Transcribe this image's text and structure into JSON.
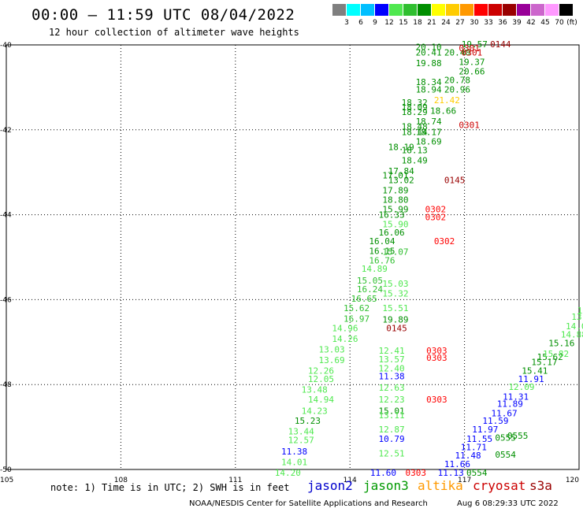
{
  "title": "00:00 – 11:59 UTC 08/04/2022",
  "subtitle": "12 hour collection of altimeter wave heights",
  "colorbar": {
    "unit": "(ft)",
    "bins": [
      {
        "label": "3",
        "color": "#7f7f7f"
      },
      {
        "label": "6",
        "color": "#00ffff"
      },
      {
        "label": "9",
        "color": "#00bfff"
      },
      {
        "label": "12",
        "color": "#0000ff"
      },
      {
        "label": "15",
        "color": "#4fe84f"
      },
      {
        "label": "18",
        "color": "#2fbf2f"
      },
      {
        "label": "21",
        "color": "#008f00"
      },
      {
        "label": "24",
        "color": "#ffff00"
      },
      {
        "label": "27",
        "color": "#ffcc00"
      },
      {
        "label": "30",
        "color": "#ff9900"
      },
      {
        "label": "33",
        "color": "#ff0000"
      },
      {
        "label": "36",
        "color": "#cc0000"
      },
      {
        "label": "39",
        "color": "#990000"
      },
      {
        "label": "42",
        "color": "#990099"
      },
      {
        "label": "45",
        "color": "#cc66cc"
      },
      {
        "label": "70",
        "color": "#ff99ff"
      },
      {
        "label": "",
        "color": "#000000"
      }
    ]
  },
  "axes": {
    "lon_labels": [
      "105",
      "108",
      "111",
      "114",
      "117",
      "120"
    ],
    "lat_labels": [
      "-40",
      "-42",
      "-44",
      "-46",
      "-48",
      "-50"
    ]
  },
  "map_extent": {
    "lon": [
      105,
      120
    ],
    "lat": [
      -40,
      -50
    ]
  },
  "note": "note: 1) Time is in UTC; 2) SWH is in feet",
  "satellites": [
    {
      "name": "jason2",
      "color": "#0000cc"
    },
    {
      "name": "jason3",
      "color": "#009900"
    },
    {
      "name": "altika",
      "color": "#ff9900"
    },
    {
      "name": "cryosat",
      "color": "#cc0000"
    },
    {
      "name": "s3a",
      "color": "#990000"
    }
  ],
  "footer": "NOAA/NESDIS Center for Satellite Applications and Research",
  "footer_time": "Aug  6 08:29:33 UTC 2022",
  "observations": [
    {
      "t": "19.57",
      "lon": 116.92,
      "lat": -39.98,
      "c": "#008f00"
    },
    {
      "t": "0144",
      "lon": 117.67,
      "lat": -39.98,
      "c": "#990000"
    },
    {
      "t": "20.10",
      "lon": 115.72,
      "lat": -40.05,
      "c": "#008f00"
    },
    {
      "t": "0301",
      "lon": 116.85,
      "lat": -40.07,
      "c": "#cc0000"
    },
    {
      "t": "20.41",
      "lon": 115.72,
      "lat": -40.18,
      "c": "#008f00"
    },
    {
      "t": "20.40",
      "lon": 116.47,
      "lat": -40.18,
      "c": "#008f00"
    },
    {
      "t": "0301",
      "lon": 116.92,
      "lat": -40.18,
      "c": "#cc0000"
    },
    {
      "t": "19.88",
      "lon": 115.72,
      "lat": -40.43,
      "c": "#008f00"
    },
    {
      "t": "19.37",
      "lon": 116.85,
      "lat": -40.4,
      "c": "#008f00"
    },
    {
      "t": "20.66",
      "lon": 116.85,
      "lat": -40.62,
      "c": "#008f00"
    },
    {
      "t": "18.34",
      "lon": 115.72,
      "lat": -40.87,
      "c": "#008f00"
    },
    {
      "t": "20.78",
      "lon": 116.47,
      "lat": -40.83,
      "c": "#008f00"
    },
    {
      "t": "18.94",
      "lon": 115.72,
      "lat": -41.05,
      "c": "#008f00"
    },
    {
      "t": "20.96",
      "lon": 116.47,
      "lat": -41.05,
      "c": "#008f00"
    },
    {
      "t": "18.32",
      "lon": 115.35,
      "lat": -41.35,
      "c": "#008f00"
    },
    {
      "t": "21.42",
      "lon": 116.2,
      "lat": -41.3,
      "c": "#ffcc00"
    },
    {
      "t": "18.09",
      "lon": 115.35,
      "lat": -41.47,
      "c": "#008f00"
    },
    {
      "t": "18.29",
      "lon": 115.35,
      "lat": -41.58,
      "c": "#008f00"
    },
    {
      "t": "18.66",
      "lon": 116.1,
      "lat": -41.55,
      "c": "#008f00"
    },
    {
      "t": "18.74",
      "lon": 115.72,
      "lat": -41.8,
      "c": "#008f00"
    },
    {
      "t": "18.48",
      "lon": 115.35,
      "lat": -41.92,
      "c": "#008f00"
    },
    {
      "t": "0301",
      "lon": 116.85,
      "lat": -41.88,
      "c": "#cc0000"
    },
    {
      "t": "18.14",
      "lon": 115.35,
      "lat": -42.05,
      "c": "#008f00"
    },
    {
      "t": "18.17",
      "lon": 115.72,
      "lat": -42.05,
      "c": "#008f00"
    },
    {
      "t": "18.69",
      "lon": 115.72,
      "lat": -42.27,
      "c": "#008f00"
    },
    {
      "t": "18.19",
      "lon": 115.0,
      "lat": -42.4,
      "c": "#008f00"
    },
    {
      "t": "18.13",
      "lon": 115.35,
      "lat": -42.48,
      "c": "#008f00"
    },
    {
      "t": "18.49",
      "lon": 115.35,
      "lat": -42.72,
      "c": "#008f00"
    },
    {
      "t": "17.84",
      "lon": 115.0,
      "lat": -42.97,
      "c": "#008f00"
    },
    {
      "t": "17.01",
      "lon": 114.85,
      "lat": -43.07,
      "c": "#008f00"
    },
    {
      "t": "13.02",
      "lon": 115.0,
      "lat": -43.18,
      "c": "#008f00"
    },
    {
      "t": "0145",
      "lon": 116.47,
      "lat": -43.18,
      "c": "#990000"
    },
    {
      "t": "17.89",
      "lon": 114.85,
      "lat": -43.42,
      "c": "#008f00"
    },
    {
      "t": "18.80",
      "lon": 114.85,
      "lat": -43.65,
      "c": "#008f00"
    },
    {
      "t": "15.99",
      "lon": 114.85,
      "lat": -43.87,
      "c": "#008f00"
    },
    {
      "t": "0302",
      "lon": 115.97,
      "lat": -43.87,
      "c": "#ff0000"
    },
    {
      "t": "16.33",
      "lon": 114.75,
      "lat": -44.0,
      "c": "#008f00"
    },
    {
      "t": "0302",
      "lon": 115.97,
      "lat": -44.05,
      "c": "#ff0000"
    },
    {
      "t": "15.90",
      "lon": 114.85,
      "lat": -44.22,
      "c": "#4fe84f"
    },
    {
      "t": "16.06",
      "lon": 114.75,
      "lat": -44.42,
      "c": "#008f00"
    },
    {
      "t": "16.04",
      "lon": 114.5,
      "lat": -44.62,
      "c": "#008f00"
    },
    {
      "t": "0302",
      "lon": 116.2,
      "lat": -44.62,
      "c": "#ff0000"
    },
    {
      "t": "16.15",
      "lon": 114.5,
      "lat": -44.85,
      "c": "#008f00"
    },
    {
      "t": "15.07",
      "lon": 114.85,
      "lat": -44.87,
      "c": "#2fbf2f"
    },
    {
      "t": "16.76",
      "lon": 114.5,
      "lat": -45.07,
      "c": "#2fbf2f"
    },
    {
      "t": "14.89",
      "lon": 114.3,
      "lat": -45.27,
      "c": "#4fe84f"
    },
    {
      "t": "15.05",
      "lon": 114.18,
      "lat": -45.55,
      "c": "#2fbf2f"
    },
    {
      "t": "15.03",
      "lon": 114.85,
      "lat": -45.62,
      "c": "#4fe84f"
    },
    {
      "t": "16.24",
      "lon": 114.18,
      "lat": -45.75,
      "c": "#2fbf2f"
    },
    {
      "t": "15.32",
      "lon": 114.85,
      "lat": -45.85,
      "c": "#4fe84f"
    },
    {
      "t": "16.65",
      "lon": 114.03,
      "lat": -45.97,
      "c": "#2fbf2f"
    },
    {
      "t": "15.62",
      "lon": 113.83,
      "lat": -46.2,
      "c": "#2fbf2f"
    },
    {
      "t": "15.51",
      "lon": 114.85,
      "lat": -46.2,
      "c": "#4fe84f"
    },
    {
      "t": "16.97",
      "lon": 113.83,
      "lat": -46.45,
      "c": "#2fbf2f"
    },
    {
      "t": "19.89",
      "lon": 114.85,
      "lat": -46.47,
      "c": "#008f00"
    },
    {
      "t": "14.96",
      "lon": 113.53,
      "lat": -46.67,
      "c": "#4fe84f"
    },
    {
      "t": "0145",
      "lon": 114.95,
      "lat": -46.67,
      "c": "#990000"
    },
    {
      "t": "14.26",
      "lon": 113.53,
      "lat": -46.92,
      "c": "#4fe84f"
    },
    {
      "t": "13.03",
      "lon": 113.18,
      "lat": -47.17,
      "c": "#4fe84f"
    },
    {
      "t": "12.41",
      "lon": 114.75,
      "lat": -47.2,
      "c": "#4fe84f"
    },
    {
      "t": "0303",
      "lon": 116.0,
      "lat": -47.2,
      "c": "#ff0000"
    },
    {
      "t": "13.69",
      "lon": 113.18,
      "lat": -47.42,
      "c": "#4fe84f"
    },
    {
      "t": "13.57",
      "lon": 114.75,
      "lat": -47.4,
      "c": "#4fe84f"
    },
    {
      "t": "0303",
      "lon": 116.0,
      "lat": -47.37,
      "c": "#ff0000"
    },
    {
      "t": "12.40",
      "lon": 114.75,
      "lat": -47.62,
      "c": "#4fe84f"
    },
    {
      "t": "12.26",
      "lon": 112.9,
      "lat": -47.67,
      "c": "#4fe84f"
    },
    {
      "t": "11.38",
      "lon": 114.75,
      "lat": -47.8,
      "c": "#0000ff"
    },
    {
      "t": "12.05",
      "lon": 112.9,
      "lat": -47.87,
      "c": "#4fe84f"
    },
    {
      "t": "13.48",
      "lon": 112.73,
      "lat": -48.12,
      "c": "#4fe84f"
    },
    {
      "t": "12.63",
      "lon": 114.75,
      "lat": -48.07,
      "c": "#4fe84f"
    },
    {
      "t": "14.94",
      "lon": 112.9,
      "lat": -48.35,
      "c": "#4fe84f"
    },
    {
      "t": "12.23",
      "lon": 114.75,
      "lat": -48.35,
      "c": "#4fe84f"
    },
    {
      "t": "0303",
      "lon": 116.0,
      "lat": -48.35,
      "c": "#ff0000"
    },
    {
      "t": "14.23",
      "lon": 112.73,
      "lat": -48.62,
      "c": "#4fe84f"
    },
    {
      "t": "15.01",
      "lon": 114.75,
      "lat": -48.62,
      "c": "#008f00"
    },
    {
      "t": "13.11",
      "lon": 114.75,
      "lat": -48.72,
      "c": "#4fe84f"
    },
    {
      "t": "15.23",
      "lon": 112.55,
      "lat": -48.85,
      "c": "#008f00"
    },
    {
      "t": "12.87",
      "lon": 114.75,
      "lat": -49.05,
      "c": "#4fe84f"
    },
    {
      "t": "13.44",
      "lon": 112.38,
      "lat": -49.1,
      "c": "#4fe84f"
    },
    {
      "t": "10.79",
      "lon": 114.75,
      "lat": -49.28,
      "c": "#0000ff"
    },
    {
      "t": "12.57",
      "lon": 112.38,
      "lat": -49.3,
      "c": "#4fe84f"
    },
    {
      "t": "11.38",
      "lon": 112.2,
      "lat": -49.57,
      "c": "#0000ff"
    },
    {
      "t": "12.51",
      "lon": 114.75,
      "lat": -49.62,
      "c": "#4fe84f"
    },
    {
      "t": "14.01",
      "lon": 112.2,
      "lat": -49.82,
      "c": "#4fe84f"
    },
    {
      "t": "14.20",
      "lon": 112.03,
      "lat": -50.07,
      "c": "#4fe84f"
    },
    {
      "t": "11.60",
      "lon": 114.53,
      "lat": -50.07,
      "c": "#0000ff"
    },
    {
      "t": "0303",
      "lon": 115.45,
      "lat": -50.07,
      "c": "#ff0000"
    },
    {
      "t": "11.13",
      "lon": 116.3,
      "lat": -50.07,
      "c": "#0000ff"
    },
    {
      "t": "0554",
      "lon": 117.05,
      "lat": -50.07,
      "c": "#008f00"
    },
    {
      "t": "11.66",
      "lon": 116.47,
      "lat": -49.87,
      "c": "#0000ff"
    },
    {
      "t": "11.48",
      "lon": 116.75,
      "lat": -49.67,
      "c": "#0000ff"
    },
    {
      "t": "0554",
      "lon": 117.8,
      "lat": -49.65,
      "c": "#008f00"
    },
    {
      "t": "11.71",
      "lon": 116.9,
      "lat": -49.47,
      "c": "#0000ff"
    },
    {
      "t": "11.55",
      "lon": 117.05,
      "lat": -49.28,
      "c": "#0000ff"
    },
    {
      "t": "0555",
      "lon": 117.8,
      "lat": -49.25,
      "c": "#008f00"
    },
    {
      "t": "0555",
      "lon": 118.12,
      "lat": -49.2,
      "c": "#008f00"
    },
    {
      "t": "11.97",
      "lon": 117.2,
      "lat": -49.05,
      "c": "#0000ff"
    },
    {
      "t": "11.59",
      "lon": 117.47,
      "lat": -48.85,
      "c": "#0000ff"
    },
    {
      "t": "11.67",
      "lon": 117.7,
      "lat": -48.67,
      "c": "#0000ff"
    },
    {
      "t": "11.89",
      "lon": 117.85,
      "lat": -48.45,
      "c": "#0000ff"
    },
    {
      "t": "11.31",
      "lon": 118.0,
      "lat": -48.28,
      "c": "#0000ff"
    },
    {
      "t": "12.09",
      "lon": 118.15,
      "lat": -48.05,
      "c": "#4fe84f"
    },
    {
      "t": "11.91",
      "lon": 118.4,
      "lat": -47.87,
      "c": "#0000ff"
    },
    {
      "t": "15.41",
      "lon": 118.5,
      "lat": -47.67,
      "c": "#008f00"
    },
    {
      "t": "15.17",
      "lon": 118.75,
      "lat": -47.47,
      "c": "#008f00"
    },
    {
      "t": "15.62",
      "lon": 118.9,
      "lat": -47.35,
      "c": "#008f00"
    },
    {
      "t": "15.82",
      "lon": 119.05,
      "lat": -47.27,
      "c": "#4fe84f"
    },
    {
      "t": "15.16",
      "lon": 119.2,
      "lat": -47.02,
      "c": "#008f00"
    },
    {
      "t": "14.88",
      "lon": 119.52,
      "lat": -46.82,
      "c": "#4fe84f"
    },
    {
      "t": "14.0",
      "lon": 119.65,
      "lat": -46.62,
      "c": "#4fe84f"
    },
    {
      "t": "13.",
      "lon": 119.8,
      "lat": -46.4,
      "c": "#4fe84f"
    },
    {
      "t": "1",
      "lon": 119.95,
      "lat": -46.25,
      "c": "#4fe84f"
    }
  ]
}
